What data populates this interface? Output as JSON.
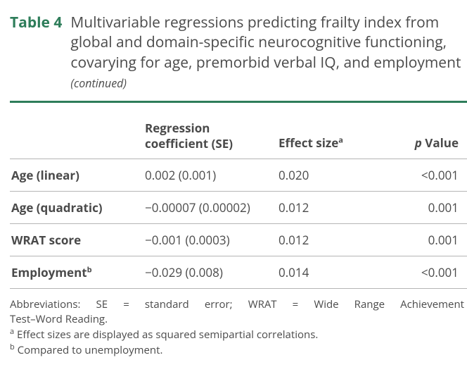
{
  "colors": {
    "accent": "#2e7d5a",
    "text": "#4a4a4a",
    "rule": "#b5b5b5",
    "background": "#ffffff"
  },
  "header": {
    "table_label": "Table 4",
    "title_line": "Multivariable regressions predicting frailty index from global and domain-specific neurocognitive functioning, covarying for age, premorbid verbal IQ, and employment",
    "continued": "(continued)"
  },
  "columns": {
    "c0": "",
    "c1_line1": "Regression",
    "c1_line2": "coefficient (SE)",
    "c2": "Effect size",
    "c2_sup": "a",
    "c3_prefix": "p",
    "c3_rest": " Value"
  },
  "rows": [
    {
      "label": "Age (linear)",
      "coef": "0.002 (0.001)",
      "es": "0.020",
      "p": "<0.001"
    },
    {
      "label": "Age (quadratic)",
      "coef": "−0.00007 (0.00002)",
      "es": "0.012",
      "p": "0.001"
    },
    {
      "label": "WRAT score",
      "coef": "−0.001 (0.0003)",
      "es": "0.012",
      "p": "0.001"
    },
    {
      "label": "Employment",
      "label_sup": "b",
      "coef": "−0.029 (0.008)",
      "es": "0.014",
      "p": "<0.001"
    }
  ],
  "footnotes": {
    "abbr_line1": "Abbreviations: SE = standard error; WRAT = Wide Range Achievement",
    "abbr_line2": "Test–Word Reading.",
    "a_sup": "a",
    "a_text": " Effect sizes are displayed as squared semipartial correlations.",
    "b_sup": "b",
    "b_text": " Compared to unemployment."
  }
}
